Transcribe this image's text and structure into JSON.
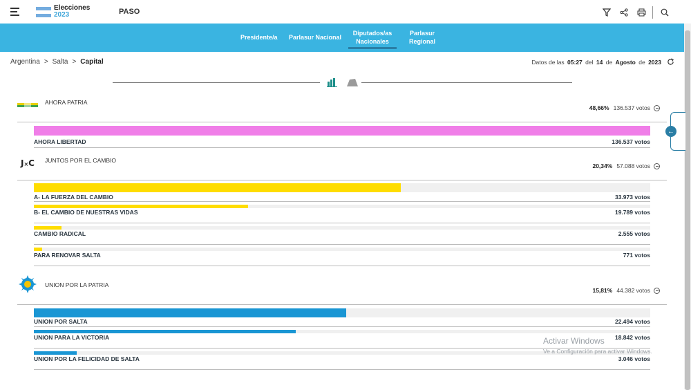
{
  "header": {
    "logo_title": "Elecciones",
    "logo_year": "2023",
    "election_type": "PASO",
    "tools": [
      "filter-icon",
      "share-icon",
      "print-icon",
      "search-icon"
    ]
  },
  "nav": {
    "tabs": [
      {
        "label": "Presidente/a",
        "active": false
      },
      {
        "label": "Parlasur Nacional",
        "active": false
      },
      {
        "label": "Diputados/as Nacionales",
        "active": true
      },
      {
        "label": "Parlasur Regional",
        "active": false
      }
    ]
  },
  "breadcrumb": {
    "level1": "Argentina",
    "level2": "Salta",
    "current": "Capital",
    "separator": ">"
  },
  "datos": {
    "prefix": "Datos de las",
    "time": "05:27",
    "mid": "del",
    "day": "14",
    "de1": "de",
    "month": "Agosto",
    "de2": "de",
    "year": "2023"
  },
  "colors": {
    "nav_bg": "#3ab4e1",
    "ahora_patria": "#f07ee8",
    "juntos": "#ffdd00",
    "union": "#1a96d4",
    "flag_blue": "#74acdf"
  },
  "parties": [
    {
      "name": "AHORA PATRIA",
      "pct": "48,66%",
      "votes": "136.537 votos",
      "logo": "ahora-patria-logo",
      "lists": [
        {
          "name": "AHORA LIBERTAD",
          "votes": "136.537 votos",
          "share": 1.0,
          "color": "#f07ee8"
        }
      ]
    },
    {
      "name": "JUNTOS POR EL CAMBIO",
      "pct": "20,34%",
      "votes": "57.088 votos",
      "logo": "juntos-por-el-cambio-logo",
      "logo_text": "J×C",
      "lists": [
        {
          "name": "A- LA FUERZA DEL CAMBIO",
          "votes": "33.973 votos",
          "share": 0.595,
          "color": "#ffdd00"
        },
        {
          "name": "B- EL CAMBIO DE NUESTRAS VIDAS",
          "votes": "19.789 votos",
          "share": 0.347,
          "color": "#ffdd00"
        },
        {
          "name": "CAMBIO RADICAL",
          "votes": "2.555 votos",
          "share": 0.045,
          "color": "#ffdd00"
        },
        {
          "name": "PARA RENOVAR SALTA",
          "votes": "771 votos",
          "share": 0.013,
          "color": "#ffdd00"
        }
      ]
    },
    {
      "name": "UNION POR LA PATRIA",
      "pct": "15,81%",
      "votes": "44.382 votos",
      "logo": "union-por-la-patria-logo",
      "lists": [
        {
          "name": "UNION POR SALTA",
          "votes": "22.494 votos",
          "share": 0.507,
          "color": "#1a96d4"
        },
        {
          "name": "UNION PARA LA VICTORIA",
          "votes": "18.842 votos",
          "share": 0.425,
          "color": "#1a96d4"
        },
        {
          "name": "UNION POR LA FELICIDAD DE SALTA",
          "votes": "3.046 votos",
          "share": 0.069,
          "color": "#1a96d4"
        }
      ]
    }
  ],
  "watermark": {
    "line1": "Activar Windows",
    "line2": "Ve a Configuración para activar Windows."
  }
}
